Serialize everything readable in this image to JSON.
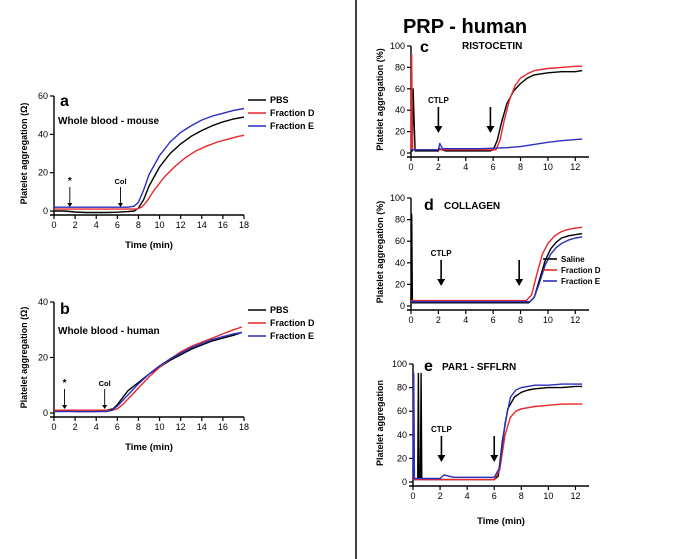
{
  "figure_title": "PRP - human",
  "colors": {
    "black": "#000000",
    "red": "#e8262b",
    "blue": "#2a2fbf"
  },
  "chart_data": [
    {
      "id": "a",
      "type": "line",
      "panel_letter": "a",
      "title": "Whole blood - mouse",
      "xlabel": "Time (min)",
      "ylabel": "Platelet aggregation (Ω)",
      "xlim": [
        0,
        18
      ],
      "ylim": [
        0,
        60
      ],
      "xticks": [
        0,
        2,
        4,
        6,
        8,
        10,
        12,
        14,
        16,
        18
      ],
      "yticks": [
        0,
        20,
        40,
        60
      ],
      "legend_position": "right",
      "annotations": [
        {
          "label": "*",
          "x": 1.5,
          "arrow": "thin"
        },
        {
          "label": "Col",
          "x": 6.3,
          "arrow": "thin"
        }
      ],
      "series": [
        {
          "name": "PBS",
          "color": "#000000",
          "x": [
            0,
            1,
            2,
            3,
            4,
            5,
            6,
            7,
            7.6,
            8,
            8.5,
            9,
            10,
            11,
            12,
            13,
            14,
            15,
            16,
            17,
            18
          ],
          "y": [
            0,
            0,
            -0.5,
            -0.8,
            -0.8,
            -0.8,
            -0.6,
            -0.3,
            0,
            1.5,
            6,
            13,
            23,
            30,
            35,
            39,
            42,
            44.5,
            46.5,
            48,
            49
          ]
        },
        {
          "name": "Fraction D",
          "color": "#e8262b",
          "x": [
            0,
            1,
            2,
            3,
            4,
            5,
            6,
            7,
            7.8,
            8.3,
            8.8,
            9.5,
            10.5,
            11.5,
            12.5,
            13.5,
            14.5,
            15.5,
            16.5,
            17.5,
            18
          ],
          "y": [
            1,
            1,
            1,
            1,
            1,
            1,
            1,
            1,
            1,
            2,
            5,
            11,
            18,
            23.5,
            28,
            31.5,
            34,
            36,
            37.5,
            39,
            39.5
          ]
        },
        {
          "name": "Fraction E",
          "color": "#2a2fbf",
          "x": [
            0,
            1,
            2,
            3,
            4,
            5,
            6,
            7,
            7.6,
            8,
            8.5,
            9,
            10,
            11,
            12,
            13,
            14,
            15,
            16,
            17,
            18
          ],
          "y": [
            2,
            2,
            2,
            2,
            2,
            2,
            2,
            2,
            2.5,
            4.5,
            11,
            19,
            29,
            36,
            41,
            44.5,
            47.5,
            49.5,
            51,
            52.5,
            53.5
          ]
        }
      ]
    },
    {
      "id": "b",
      "type": "line",
      "panel_letter": "b",
      "title": "Whole blood - human",
      "xlabel": "Time (min)",
      "ylabel": "Platelet aggregation (Ω)",
      "xlim": [
        0,
        18
      ],
      "ylim": [
        0,
        40
      ],
      "xticks": [
        0,
        2,
        4,
        6,
        8,
        10,
        12,
        14,
        16,
        18
      ],
      "yticks": [
        0,
        20,
        40
      ],
      "legend_position": "right",
      "annotations": [
        {
          "label": "*",
          "x": 1.0,
          "arrow": "thin"
        },
        {
          "label": "Col",
          "x": 4.8,
          "arrow": "thin"
        }
      ],
      "series": [
        {
          "name": "PBS",
          "color": "#000000",
          "x": [
            0,
            1,
            2,
            3,
            4,
            5,
            5.6,
            6,
            6.5,
            7,
            7.5,
            8,
            9,
            10,
            11,
            12,
            13,
            14,
            15,
            16,
            17,
            17.8
          ],
          "y": [
            1,
            1,
            0.5,
            0.5,
            0.5,
            1,
            1.5,
            3,
            5.5,
            8,
            9.5,
            11,
            14,
            16.5,
            19,
            21,
            23,
            24.5,
            26,
            27,
            28,
            29
          ]
        },
        {
          "name": "Fraction D",
          "color": "#e8262b",
          "x": [
            0,
            1,
            2,
            3,
            4,
            5,
            5.5,
            6,
            6.5,
            7,
            7.5,
            8,
            9,
            10,
            11,
            12,
            13,
            14,
            15,
            16,
            17,
            17.8
          ],
          "y": [
            1,
            1,
            1,
            1,
            1,
            1,
            1,
            1.5,
            3,
            5,
            7,
            9,
            13,
            16.5,
            19.5,
            22,
            24,
            25.5,
            27,
            28.5,
            30,
            31
          ]
        },
        {
          "name": "Fraction E",
          "color": "#2a2fbf",
          "x": [
            0,
            1,
            2,
            3,
            4,
            5,
            5.5,
            6,
            6.5,
            7,
            7.5,
            8,
            9,
            10,
            11,
            12,
            13,
            14,
            15,
            16,
            17,
            17.8
          ],
          "y": [
            0.5,
            0.5,
            0.5,
            0.5,
            0.5,
            0.5,
            1,
            2.5,
            4.5,
            6.5,
            8.5,
            10.5,
            14,
            17,
            19.5,
            21.5,
            23.5,
            25,
            26.5,
            27.5,
            28.5,
            29
          ]
        }
      ]
    },
    {
      "id": "c",
      "type": "line",
      "panel_letter": "c",
      "title": "RISTOCETIN",
      "xlabel": "",
      "ylabel": "Platelet aggregation (%)",
      "xlim": [
        0,
        13
      ],
      "ylim": [
        0,
        100
      ],
      "xticks": [
        0,
        2,
        4,
        6,
        8,
        10,
        12
      ],
      "yticks": [
        0,
        20,
        40,
        60,
        80,
        100
      ],
      "annotations": [
        {
          "label": "CTLP",
          "x": 2.0,
          "arrow": "bold"
        },
        {
          "label": "",
          "x": 5.8,
          "arrow": "bold"
        }
      ],
      "series": [
        {
          "name": "Saline",
          "color": "#000000",
          "x": [
            0,
            0.1,
            0.15,
            0.3,
            1,
            1.9,
            2.0,
            2.05,
            2.5,
            3,
            4,
            5,
            5.8,
            6,
            6.3,
            6.6,
            7,
            7.5,
            8,
            8.5,
            9,
            10,
            11,
            12,
            12.5
          ],
          "y": [
            2,
            2,
            60,
            2,
            2,
            2,
            2,
            4,
            2,
            2,
            2,
            2,
            2,
            3,
            12,
            28,
            46,
            58,
            65,
            70,
            73,
            75,
            76,
            76,
            77
          ]
        },
        {
          "name": "Fraction D",
          "color": "#e8262b",
          "x": [
            0,
            0.05,
            0.1,
            0.2,
            1,
            2,
            3,
            4,
            5,
            6.2,
            6.5,
            6.8,
            7.2,
            7.6,
            8,
            8.5,
            9,
            10,
            11,
            12,
            12.5
          ],
          "y": [
            3,
            92,
            3,
            3,
            3,
            3,
            3,
            3,
            3,
            3,
            12,
            30,
            50,
            63,
            70,
            74,
            77,
            79,
            80,
            81,
            81
          ]
        },
        {
          "name": "Fraction E",
          "color": "#2a2fbf",
          "x": [
            0,
            1,
            2,
            2.1,
            2.3,
            2.6,
            3,
            4,
            5,
            6,
            7,
            8,
            9,
            10,
            11,
            12,
            12.5
          ],
          "y": [
            3,
            3,
            3,
            9,
            4,
            4,
            4,
            4,
            4,
            4.5,
            5,
            6,
            8,
            10,
            11.5,
            12.5,
            13
          ]
        }
      ]
    },
    {
      "id": "d",
      "type": "line",
      "panel_letter": "d",
      "title": "COLLAGEN",
      "xlabel": "",
      "ylabel": "Platelet aggregation (%)",
      "xlim": [
        0,
        13
      ],
      "ylim": [
        0,
        100
      ],
      "xticks": [
        0,
        2,
        4,
        6,
        8,
        10,
        12
      ],
      "yticks": [
        0,
        20,
        40,
        60,
        80,
        100
      ],
      "legend_position": "right",
      "annotations": [
        {
          "label": "CTLP",
          "x": 2.2,
          "arrow": "bold"
        },
        {
          "label": "",
          "x": 7.9,
          "arrow": "bold"
        }
      ],
      "series": [
        {
          "name": "Saline",
          "color": "#000000",
          "x": [
            0,
            0.05,
            0.1,
            0.2,
            1,
            2,
            3,
            4,
            5,
            6,
            7,
            8,
            8.6,
            9,
            9.4,
            9.8,
            10.2,
            10.6,
            11,
            11.5,
            12,
            12.5
          ],
          "y": [
            3,
            85,
            3,
            3,
            3,
            3,
            3,
            3,
            3,
            3,
            3,
            3,
            3,
            8,
            25,
            42,
            53,
            59,
            63,
            65,
            66,
            67
          ]
        },
        {
          "name": "Fraction D",
          "color": "#e8262b",
          "x": [
            0,
            1,
            2,
            3,
            4,
            5,
            6,
            7,
            8,
            8.4,
            8.8,
            9.2,
            9.6,
            10,
            10.5,
            11,
            11.5,
            12,
            12.5
          ],
          "y": [
            5,
            5,
            5,
            5,
            5,
            5,
            5,
            5,
            5,
            5,
            10,
            30,
            48,
            58,
            65,
            69,
            71,
            72,
            73
          ]
        },
        {
          "name": "Fraction E",
          "color": "#2a2fbf",
          "x": [
            0,
            1,
            2,
            3,
            4,
            5,
            6,
            7,
            8,
            8.7,
            9,
            9.4,
            9.8,
            10.2,
            10.6,
            11,
            11.5,
            12,
            12.5
          ],
          "y": [
            4,
            4,
            4,
            4,
            4,
            4,
            4,
            4,
            4,
            4,
            8,
            22,
            38,
            48,
            54,
            58,
            61,
            63,
            64
          ]
        }
      ]
    },
    {
      "id": "e",
      "type": "line",
      "panel_letter": "e",
      "title": "PAR1 - SFFLRN",
      "xlabel": "Time (min)",
      "ylabel": "Platelet aggregation",
      "xlim": [
        0,
        13
      ],
      "ylim": [
        0,
        100
      ],
      "xticks": [
        0,
        2,
        4,
        6,
        8,
        10,
        12
      ],
      "yticks": [
        0,
        20,
        40,
        60,
        80,
        100
      ],
      "annotations": [
        {
          "label": "CTLP",
          "x": 2.1,
          "arrow": "bold"
        },
        {
          "label": "",
          "x": 6.0,
          "arrow": "bold"
        }
      ],
      "series": [
        {
          "name": "Saline",
          "color": "#000000",
          "x": [
            0,
            0.35,
            0.4,
            0.45,
            0.55,
            0.6,
            0.65,
            1,
            2,
            3,
            4,
            5,
            6,
            6.3,
            6.6,
            7,
            7.5,
            8,
            8.5,
            9,
            10,
            11,
            12,
            12.5
          ],
          "y": [
            2,
            2,
            92,
            2,
            2,
            92,
            2,
            2,
            2,
            2,
            2,
            2,
            2,
            5,
            35,
            62,
            72,
            76,
            78,
            79,
            80,
            80,
            81,
            81
          ]
        },
        {
          "name": "Fraction D",
          "color": "#e8262b",
          "x": [
            0,
            0.05,
            0.1,
            0.2,
            1,
            2,
            3,
            4,
            5,
            6,
            6.4,
            6.8,
            7.2,
            7.6,
            8,
            8.5,
            9,
            10,
            11,
            12,
            12.5
          ],
          "y": [
            2,
            90,
            2,
            2,
            2,
            2,
            2,
            2,
            2,
            2,
            10,
            40,
            55,
            60,
            62,
            63,
            64,
            65,
            66,
            66,
            66
          ]
        },
        {
          "name": "Fraction E",
          "color": "#2a2fbf",
          "x": [
            0,
            0.05,
            0.1,
            0.2,
            1,
            2,
            2.3,
            3,
            4,
            5,
            6,
            6.4,
            6.8,
            7.2,
            7.6,
            8,
            8.5,
            9,
            10,
            11,
            12,
            12.5
          ],
          "y": [
            3,
            92,
            3,
            3,
            3,
            3,
            6,
            4,
            4,
            4,
            4,
            12,
            50,
            72,
            78,
            80,
            81,
            82,
            82,
            83,
            83,
            83
          ]
        }
      ]
    }
  ]
}
